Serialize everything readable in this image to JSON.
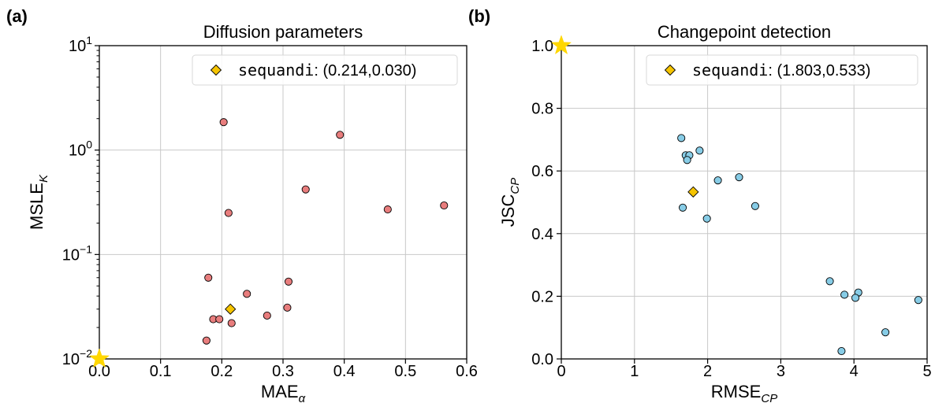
{
  "colors": {
    "panel_a_marker": "#e87d7d",
    "panel_b_marker": "#87cce6",
    "highlight_marker": "#f5c400",
    "star": "#ffd700",
    "grid": "#c8c8c8",
    "axis": "#000000"
  },
  "chart_data": [
    {
      "panel_label": "(a)",
      "type": "scatter",
      "title": "Diffusion parameters",
      "xlabel": "MAE",
      "xlabel_sub": "α",
      "ylabel": "MSLE",
      "ylabel_sub": "K",
      "xlim": [
        0.0,
        0.6
      ],
      "ylim": [
        0.01,
        10
      ],
      "yscale": "log",
      "grid": true,
      "legend_position": "top-right",
      "xticks": [
        {
          "value": 0.0,
          "label": "0.0"
        },
        {
          "value": 0.1,
          "label": "0.1"
        },
        {
          "value": 0.2,
          "label": "0.2"
        },
        {
          "value": 0.3,
          "label": "0.3"
        },
        {
          "value": 0.4,
          "label": "0.4"
        },
        {
          "value": 0.5,
          "label": "0.5"
        },
        {
          "value": 0.6,
          "label": "0.6"
        }
      ],
      "yticks": [
        {
          "value": 0.01,
          "base": "10",
          "exp": "−2"
        },
        {
          "value": 0.1,
          "base": "10",
          "exp": "−1"
        },
        {
          "value": 1,
          "base": "10",
          "exp": "0"
        },
        {
          "value": 10,
          "base": "10",
          "exp": "1"
        }
      ],
      "series": [
        {
          "role": "others",
          "marker": "circle",
          "points": [
            [
              0.203,
              1.85
            ],
            [
              0.393,
              1.4
            ],
            [
              0.211,
              0.25
            ],
            [
              0.337,
              0.42
            ],
            [
              0.471,
              0.27
            ],
            [
              0.563,
              0.295
            ],
            [
              0.178,
              0.06
            ],
            [
              0.309,
              0.055
            ],
            [
              0.241,
              0.042
            ],
            [
              0.307,
              0.031
            ],
            [
              0.274,
              0.026
            ],
            [
              0.186,
              0.024
            ],
            [
              0.196,
              0.024
            ],
            [
              0.216,
              0.022
            ],
            [
              0.175,
              0.015
            ]
          ]
        },
        {
          "role": "highlight",
          "name": "sequandi",
          "marker": "diamond",
          "points": [
            [
              0.214,
              0.03
            ]
          ]
        },
        {
          "role": "ideal",
          "marker": "star",
          "points": [
            [
              0.0,
              0.01
            ]
          ]
        }
      ],
      "legend": {
        "name": "sequandi",
        "value_text": ": (0.214,0.030)"
      }
    },
    {
      "panel_label": "(b)",
      "type": "scatter",
      "title": "Changepoint detection",
      "xlabel": "RMSE",
      "xlabel_sub": "CP",
      "ylabel": "JSC",
      "ylabel_sub": "CP",
      "xlim": [
        0,
        5
      ],
      "ylim": [
        0.0,
        1.0
      ],
      "yscale": "linear",
      "grid": true,
      "legend_position": "top-right",
      "xticks": [
        {
          "value": 0,
          "label": "0"
        },
        {
          "value": 1,
          "label": "1"
        },
        {
          "value": 2,
          "label": "2"
        },
        {
          "value": 3,
          "label": "3"
        },
        {
          "value": 4,
          "label": "4"
        },
        {
          "value": 5,
          "label": "5"
        }
      ],
      "yticks": [
        {
          "value": 0.0,
          "label": "0.0"
        },
        {
          "value": 0.2,
          "label": "0.2"
        },
        {
          "value": 0.4,
          "label": "0.4"
        },
        {
          "value": 0.6,
          "label": "0.6"
        },
        {
          "value": 0.8,
          "label": "0.8"
        },
        {
          "value": 1.0,
          "label": "1.0"
        }
      ],
      "series": [
        {
          "role": "others",
          "marker": "circle",
          "points": [
            [
              1.64,
              0.705
            ],
            [
              1.89,
              0.665
            ],
            [
              1.7,
              0.65
            ],
            [
              1.75,
              0.65
            ],
            [
              1.72,
              0.635
            ],
            [
              2.14,
              0.57
            ],
            [
              2.43,
              0.58
            ],
            [
              1.66,
              0.483
            ],
            [
              2.65,
              0.488
            ],
            [
              1.99,
              0.448
            ],
            [
              3.67,
              0.248
            ],
            [
              4.06,
              0.212
            ],
            [
              3.87,
              0.205
            ],
            [
              4.02,
              0.195
            ],
            [
              4.88,
              0.188
            ],
            [
              4.43,
              0.085
            ],
            [
              3.83,
              0.025
            ]
          ]
        },
        {
          "role": "highlight",
          "name": "sequandi",
          "marker": "diamond",
          "points": [
            [
              1.803,
              0.533
            ]
          ]
        },
        {
          "role": "ideal",
          "marker": "star",
          "points": [
            [
              0,
              1.0
            ]
          ]
        }
      ],
      "legend": {
        "name": "sequandi",
        "value_text": ": (1.803,0.533)"
      }
    }
  ]
}
